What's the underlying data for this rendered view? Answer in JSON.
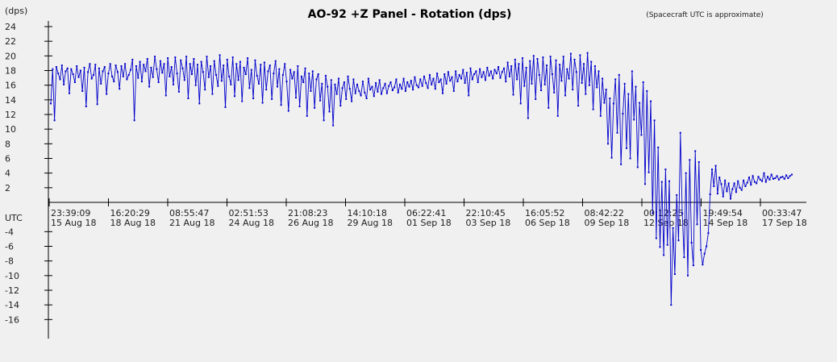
{
  "chart_data": {
    "type": "line",
    "title": "AO-92 +Z Panel - Rotation (dps)",
    "note": "(Spacecraft UTC is approximate)",
    "ylabel": "(dps)",
    "xlabel": "UTC",
    "ylim": [
      -17,
      25
    ],
    "yticks": [
      -16,
      -14,
      -12,
      -10,
      -8,
      -6,
      -4,
      2,
      4,
      6,
      8,
      10,
      12,
      14,
      16,
      18,
      20,
      22,
      24
    ],
    "x_ticks": [
      {
        "time": "23:39:09",
        "date": "15 Aug 18"
      },
      {
        "time": "16:20:29",
        "date": "18 Aug 18"
      },
      {
        "time": "08:55:47",
        "date": "21 Aug 18"
      },
      {
        "time": "02:51:53",
        "date": "24 Aug 18"
      },
      {
        "time": "21:08:23",
        "date": "26 Aug 18"
      },
      {
        "time": "14:10:18",
        "date": "29 Aug 18"
      },
      {
        "time": "06:22:41",
        "date": "01 Sep 18"
      },
      {
        "time": "22:10:45",
        "date": "03 Sep 18"
      },
      {
        "time": "16:05:52",
        "date": "06 Sep 18"
      },
      {
        "time": "08:42:22",
        "date": "09 Sep 18"
      },
      {
        "time": "00:12:25",
        "date": "12 Sep 18"
      },
      {
        "time": "19:49:54",
        "date": "14 Sep 18"
      },
      {
        "time": "00:33:47",
        "date": "17 Sep 18"
      }
    ],
    "series": [
      {
        "color": "#0000cc",
        "values": [
          13.5,
          18.2,
          11.2,
          18.5,
          17.6,
          16.8,
          18.7,
          16.1,
          17.9,
          18.3,
          14.9,
          18.2,
          17.5,
          16.4,
          18.6,
          17.1,
          18.0,
          15.2,
          18.4,
          13.1,
          17.8,
          18.9,
          16.9,
          17.4,
          18.8,
          13.4,
          18.3,
          16.2,
          17.9,
          18.5,
          14.8,
          17.6,
          18.9,
          17.2,
          16.5,
          18.7,
          17.8,
          15.5,
          18.6,
          17.2,
          18.9,
          16.8,
          17.4,
          18.1,
          19.5,
          11.2,
          18.6,
          17.0,
          19.2,
          16.5,
          18.8,
          17.9,
          19.6,
          15.8,
          18.4,
          17.1,
          19.9,
          18.2,
          16.4,
          19.3,
          17.7,
          18.9,
          14.6,
          19.7,
          17.2,
          18.5,
          16.1,
          19.8,
          17.6,
          15.1,
          19.4,
          18.3,
          16.7,
          19.9,
          14.2,
          18.9,
          17.5,
          19.6,
          16.0,
          18.8,
          13.5,
          19.2,
          17.8,
          15.4,
          19.9,
          17.1,
          18.6,
          14.8,
          19.3,
          17.4,
          15.9,
          20.1,
          16.6,
          18.7,
          13.0,
          19.5,
          17.2,
          16.1,
          19.8,
          14.5,
          18.9,
          16.7,
          19.2,
          13.8,
          18.4,
          17.5,
          19.7,
          15.6,
          18.1,
          14.2,
          19.4,
          17.3,
          16.2,
          18.8,
          13.6,
          19.1,
          15.4,
          17.9,
          18.7,
          14.1,
          17.6,
          19.3,
          15.8,
          18.2,
          13.3,
          17.4,
          18.9,
          16.5,
          12.5,
          18.1,
          16.9,
          17.8,
          14.3,
          18.6,
          13.1,
          17.2,
          16.4,
          18.3,
          11.8,
          17.6,
          15.2,
          17.9,
          12.9,
          16.8,
          17.5,
          13.9,
          16.2,
          11.2,
          17.3,
          15.8,
          12.4,
          16.7,
          10.5,
          16.1,
          14.8,
          16.9,
          13.2,
          15.6,
          16.4,
          14.1,
          17.2,
          15.5,
          13.8,
          16.8,
          14.9,
          16.1,
          15.2,
          14.6,
          16.5,
          15.0,
          14.2,
          16.9,
          15.4,
          15.8,
          14.5,
          16.3,
          15.1,
          16.7,
          14.8,
          15.6,
          16.2,
          14.9,
          15.9,
          16.4,
          15.3,
          15.7,
          16.8,
          15.0,
          16.1,
          15.5,
          16.9,
          15.2,
          16.4,
          15.8,
          16.6,
          15.4,
          17.1,
          16.0,
          15.7,
          16.8,
          15.9,
          17.2,
          16.3,
          15.6,
          17.4,
          16.1,
          16.9,
          15.5,
          17.6,
          16.4,
          16.8,
          14.9,
          17.5,
          16.2,
          17.8,
          16.6,
          17.1,
          15.2,
          17.9,
          16.5,
          17.4,
          16.9,
          18.1,
          16.3,
          17.7,
          14.6,
          18.3,
          16.8,
          17.5,
          17.9,
          16.4,
          18.2,
          17.1,
          17.8,
          16.7,
          18.4,
          17.3,
          17.9,
          16.9,
          18.1,
          17.6,
          18.5,
          17.0,
          17.8,
          18.3,
          16.5,
          19.1,
          17.2,
          18.6,
          14.7,
          19.5,
          16.8,
          18.9,
          13.5,
          19.7,
          15.9,
          18.4,
          11.5,
          19.3,
          16.2,
          20.0,
          14.1,
          19.6,
          17.4,
          15.3,
          19.8,
          16.1,
          18.7,
          12.9,
          19.9,
          17.5,
          15.0,
          19.4,
          11.8,
          18.8,
          16.6,
          19.9,
          14.6,
          18.2,
          16.9,
          20.3,
          15.4,
          19.5,
          17.8,
          13.2,
          20.1,
          16.3,
          18.9,
          14.8,
          20.4,
          16.0,
          19.2,
          12.7,
          18.6,
          15.7,
          17.9,
          11.8,
          16.9,
          13.6,
          15.4,
          8.0,
          14.2,
          6.1,
          13.5,
          16.8,
          9.5,
          17.4,
          5.2,
          12.1,
          16.2,
          7.4,
          14.8,
          6.0,
          17.9,
          11.3,
          15.8,
          4.8,
          13.6,
          9.2,
          16.4,
          2.5,
          15.2,
          4.1,
          13.8,
          -1.5,
          11.2,
          -4.9,
          7.5,
          -6.1,
          2.8,
          -7.2,
          4.5,
          -5.8,
          2.9,
          -14.0,
          -3.5,
          -9.8,
          1.0,
          -5.2,
          9.5,
          -1.5,
          -7.5,
          4.0,
          -10.0,
          5.8,
          -5.5,
          -8.6,
          7.0,
          -3.0,
          5.5,
          -6.5,
          -8.5,
          -7.0,
          -6.0,
          -4.2,
          1.1,
          4.5,
          2.2,
          5.0,
          1.2,
          3.4,
          2.5,
          0.8,
          3.0,
          1.5,
          2.6,
          0.5,
          1.8,
          2.6,
          1.4,
          2.9,
          2.0,
          1.7,
          3.0,
          2.2,
          2.7,
          3.4,
          2.4,
          3.6,
          2.8,
          2.6,
          3.5,
          3.1,
          2.9,
          4.0,
          2.8,
          3.5,
          3.1,
          3.8,
          3.2,
          3.3,
          3.6,
          3.1,
          3.4,
          3.5,
          3.2,
          3.7,
          3.3,
          3.6,
          3.8
        ]
      }
    ]
  }
}
